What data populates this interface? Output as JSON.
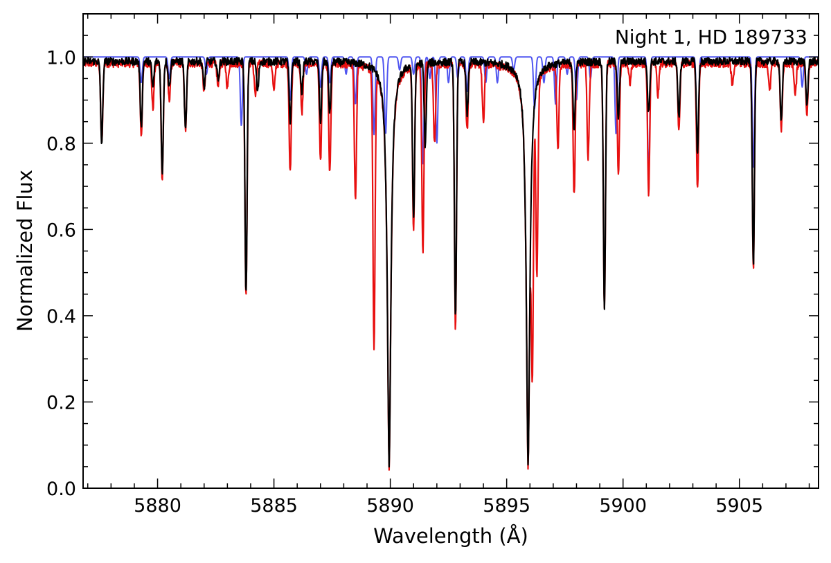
{
  "chart_data": {
    "type": "line",
    "title": "",
    "annotation": "Night 1, HD 189733",
    "xlabel": "Wavelength (Å)",
    "ylabel": "Normalized Flux",
    "xlim": [
      5876.8,
      5908.4
    ],
    "ylim": [
      0.0,
      1.1
    ],
    "x_ticks": [
      5880,
      5885,
      5890,
      5895,
      5900,
      5905
    ],
    "x_tick_labels": [
      "5880",
      "5885",
      "5890",
      "5895",
      "5900",
      "5905"
    ],
    "y_ticks": [
      0.0,
      0.2,
      0.4,
      0.6,
      0.8,
      1.0
    ],
    "y_tick_labels": [
      "0.0",
      "0.2",
      "0.4",
      "0.6",
      "0.8",
      "1.0"
    ],
    "grid": false,
    "legend": null,
    "series": [
      {
        "color": "#4f55f0",
        "continuum": 1.0,
        "lines": [
          [
            5879.3,
            0.94
          ],
          [
            5880.5,
            0.95
          ],
          [
            5882.1,
            0.96
          ],
          [
            5883.6,
            0.84
          ],
          [
            5885.7,
            0.9
          ],
          [
            5886.4,
            0.96
          ],
          [
            5887.0,
            0.93
          ],
          [
            5887.4,
            0.94
          ],
          [
            5888.1,
            0.96
          ],
          [
            5888.5,
            0.89
          ],
          [
            5889.3,
            0.82
          ],
          [
            5889.8,
            0.82
          ],
          [
            5890.4,
            0.97
          ],
          [
            5891.0,
            0.96
          ],
          [
            5891.4,
            0.75
          ],
          [
            5891.7,
            0.95
          ],
          [
            5892.0,
            0.8
          ],
          [
            5892.5,
            0.94
          ],
          [
            5892.9,
            0.95
          ],
          [
            5893.3,
            0.92
          ],
          [
            5894.1,
            0.94
          ],
          [
            5894.6,
            0.94
          ],
          [
            5895.3,
            0.97
          ],
          [
            5896.2,
            0.88
          ],
          [
            5896.6,
            0.94
          ],
          [
            5897.1,
            0.89
          ],
          [
            5897.6,
            0.96
          ],
          [
            5898.0,
            0.9
          ],
          [
            5898.6,
            0.95
          ],
          [
            5899.7,
            0.82
          ],
          [
            5901.1,
            0.72
          ],
          [
            5903.2,
            0.76
          ],
          [
            5905.6,
            0.74
          ],
          [
            5907.7,
            0.93
          ]
        ]
      },
      {
        "color": "#e81010",
        "continuum": 0.985,
        "broad": [
          [
            5889.95,
            0.95,
            0.6
          ],
          [
            5895.92,
            0.95,
            0.6
          ]
        ],
        "lines": [
          [
            5877.6,
            0.8
          ],
          [
            5879.3,
            0.82
          ],
          [
            5879.8,
            0.88
          ],
          [
            5880.2,
            0.72
          ],
          [
            5880.5,
            0.9
          ],
          [
            5881.2,
            0.83
          ],
          [
            5882.0,
            0.92
          ],
          [
            5882.6,
            0.93
          ],
          [
            5883.0,
            0.93
          ],
          [
            5883.8,
            0.44
          ],
          [
            5884.2,
            0.91
          ],
          [
            5885.0,
            0.92
          ],
          [
            5885.7,
            0.73
          ],
          [
            5886.2,
            0.87
          ],
          [
            5887.0,
            0.76
          ],
          [
            5887.4,
            0.73
          ],
          [
            5888.5,
            0.67
          ],
          [
            5889.3,
            0.33
          ],
          [
            5891.0,
            0.6
          ],
          [
            5891.4,
            0.55
          ],
          [
            5891.9,
            0.8
          ],
          [
            5892.8,
            0.37
          ],
          [
            5893.3,
            0.83
          ],
          [
            5894.0,
            0.85
          ],
          [
            5896.1,
            0.3
          ],
          [
            5896.3,
            0.52
          ],
          [
            5897.2,
            0.79
          ],
          [
            5897.9,
            0.68
          ],
          [
            5898.5,
            0.77
          ],
          [
            5899.2,
            0.42
          ],
          [
            5899.8,
            0.72
          ],
          [
            5900.3,
            0.94
          ],
          [
            5901.1,
            0.68
          ],
          [
            5901.5,
            0.91
          ],
          [
            5902.4,
            0.83
          ],
          [
            5903.2,
            0.69
          ],
          [
            5904.7,
            0.93
          ],
          [
            5905.6,
            0.51
          ],
          [
            5906.3,
            0.92
          ],
          [
            5906.8,
            0.83
          ],
          [
            5907.4,
            0.91
          ],
          [
            5907.9,
            0.87
          ]
        ]
      },
      {
        "color": "#000000",
        "continuum": 0.99,
        "broad": [
          [
            5889.95,
            0.95,
            0.6
          ],
          [
            5895.92,
            0.95,
            0.6
          ]
        ],
        "lines": [
          [
            5877.6,
            0.8
          ],
          [
            5879.3,
            0.84
          ],
          [
            5879.8,
            0.93
          ],
          [
            5880.2,
            0.73
          ],
          [
            5880.5,
            0.93
          ],
          [
            5881.2,
            0.83
          ],
          [
            5882.0,
            0.93
          ],
          [
            5882.6,
            0.95
          ],
          [
            5883.8,
            0.45
          ],
          [
            5884.3,
            0.92
          ],
          [
            5885.7,
            0.85
          ],
          [
            5886.2,
            0.92
          ],
          [
            5887.0,
            0.85
          ],
          [
            5887.4,
            0.87
          ],
          [
            5891.0,
            0.63
          ],
          [
            5891.5,
            0.8
          ],
          [
            5892.8,
            0.39
          ],
          [
            5893.3,
            0.87
          ],
          [
            5897.9,
            0.83
          ],
          [
            5899.2,
            0.42
          ],
          [
            5899.8,
            0.86
          ],
          [
            5901.1,
            0.87
          ],
          [
            5902.4,
            0.86
          ],
          [
            5903.2,
            0.78
          ],
          [
            5905.6,
            0.52
          ],
          [
            5906.8,
            0.85
          ],
          [
            5907.9,
            0.89
          ]
        ]
      }
    ]
  }
}
